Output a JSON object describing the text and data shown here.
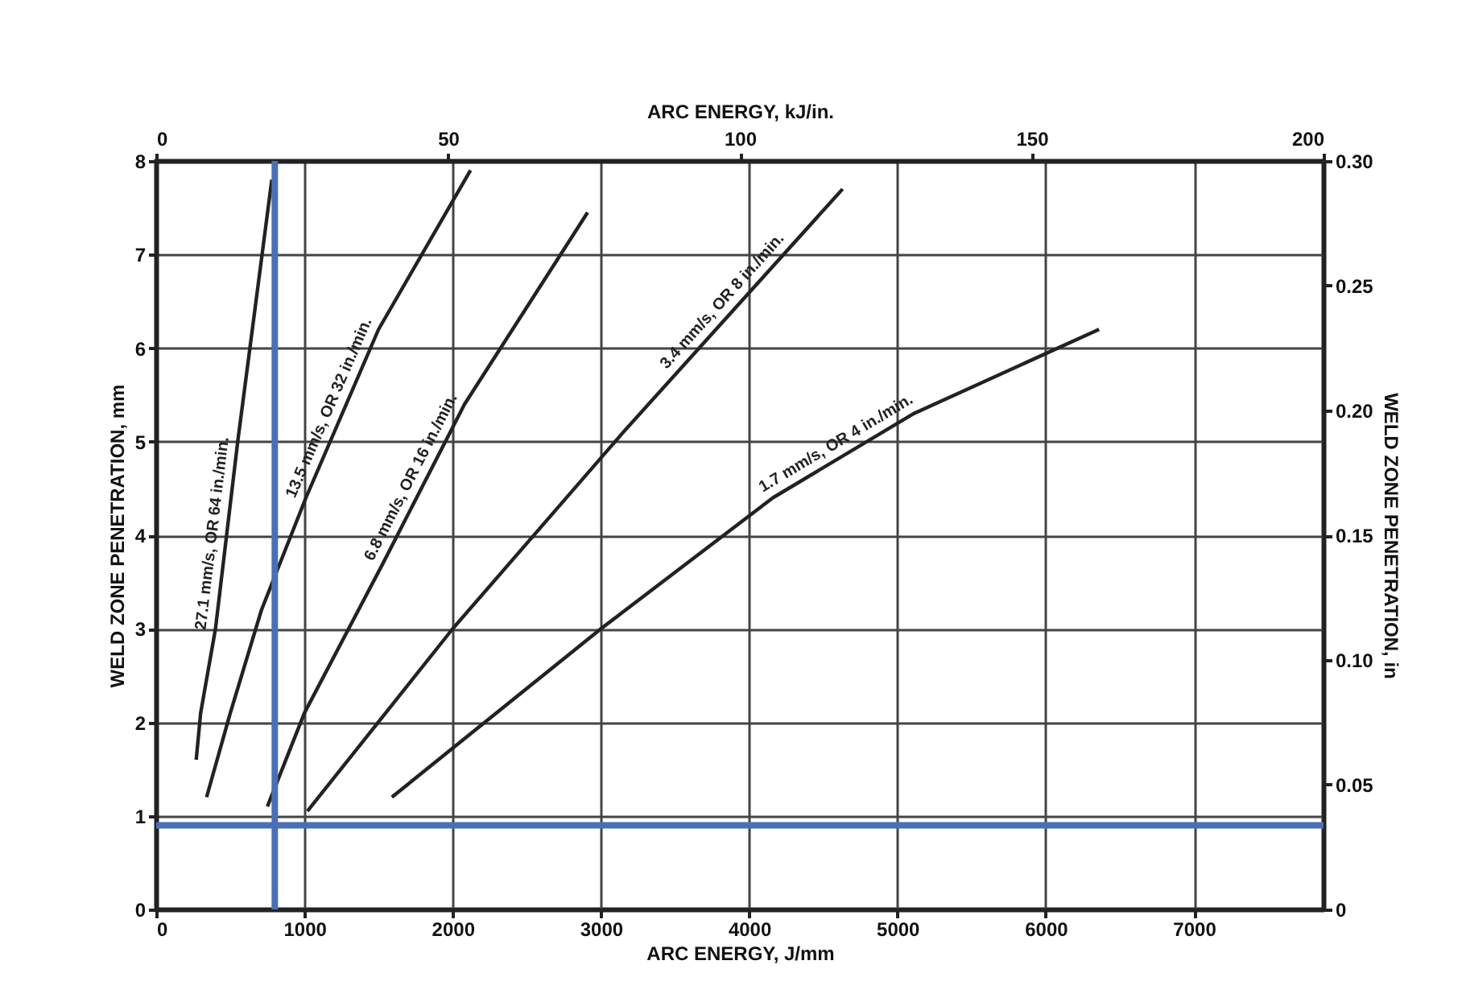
{
  "chart_data": {
    "type": "line",
    "xlabel": "ARC ENERGY, J/mm",
    "x2label": "ARC ENERGY, kJ/in.",
    "ylabel": "WELD ZONE PENETRATION, mm",
    "y2label": "WELD ZONE PENETRATION, in",
    "xlim": [
      0,
      7874
    ],
    "xticks": [
      0,
      1000,
      2000,
      3000,
      4000,
      5000,
      6000,
      7000
    ],
    "x2lim": [
      0,
      200
    ],
    "x2ticks": [
      0,
      50,
      100,
      150,
      200
    ],
    "ylim": [
      0,
      8
    ],
    "yticks": [
      0,
      1,
      2,
      3,
      4,
      5,
      6,
      7,
      8
    ],
    "y2lim": [
      0,
      0.3
    ],
    "y2ticks": [
      0,
      0.05,
      {
        "value": 0.1,
        "label": "0.10"
      },
      0.15,
      {
        "value": 0.2,
        "label": "0.20"
      },
      0.25,
      {
        "value": 0.3,
        "label": "0.30"
      }
    ],
    "grid": true,
    "line_style": "solid",
    "series": [
      {
        "name": "27.1 mm/s, OR 64 in./min.",
        "color": "#222222",
        "x": [
          270,
          300,
          400,
          550,
          780
        ],
        "values": [
          1.6,
          2.1,
          3,
          5,
          7.8
        ]
      },
      {
        "name": "13.5 mm/s, OR 32 in./min.",
        "color": "#222222",
        "x": [
          340,
          500,
          710,
          1010,
          1500,
          2120
        ],
        "values": [
          1.2,
          2.1,
          3.2,
          4.4,
          6.2,
          7.9
        ]
      },
      {
        "name": "6.8 mm/s, OR 16 in./min.",
        "color": "#222222",
        "x": [
          750,
          1000,
          1530,
          2080,
          2910
        ],
        "values": [
          1.1,
          2.1,
          3.7,
          5.4,
          7.45
        ]
      },
      {
        "name": "3.4 mm/s, OR 8 in./min.",
        "color": "#222222",
        "x": [
          1020,
          2000,
          3150,
          4630
        ],
        "values": [
          1.05,
          3,
          5.1,
          7.7
        ]
      },
      {
        "name": "1.7 mm/s, OR 4 in./min.",
        "color": "#222222",
        "x": [
          1590,
          3000,
          4160,
          5110,
          6360
        ],
        "values": [
          1.2,
          3,
          4.4,
          5.3,
          6.2
        ]
      }
    ],
    "ref_lines": [
      {
        "axis": "x",
        "value": 800,
        "color": "#4a6fb5"
      },
      {
        "axis": "y",
        "value": 0.9,
        "color": "#4a6fb5"
      }
    ]
  }
}
